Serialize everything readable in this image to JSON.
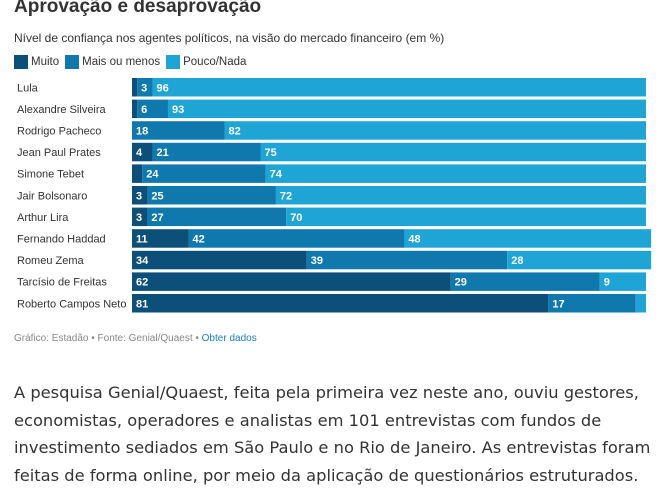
{
  "chart_data": {
    "type": "bar",
    "orientation": "horizontal",
    "stacked": true,
    "title": "Aprovação e desaprovação",
    "subtitle": "Nível de confiança nos agentes políticos, na visão do mercado financeiro (em %)",
    "categories": [
      "Lula",
      "Alexandre Silveira",
      "Rodrigo Pacheco",
      "Jean Paul Prates",
      "Simone Tebet",
      "Jair Bolsonaro",
      "Arthur Lira",
      "Fernando Haddad",
      "Romeu Zema",
      "Tarcísio de Freitas",
      "Roberto Campos Neto"
    ],
    "series": [
      {
        "name": "Muito",
        "color": "#0c4f78",
        "values": [
          1,
          1,
          0,
          4,
          2,
          3,
          3,
          11,
          34,
          62,
          81
        ]
      },
      {
        "name": "Mais ou menos",
        "color": "#0f79ad",
        "values": [
          3,
          6,
          18,
          21,
          24,
          25,
          27,
          42,
          39,
          29,
          17
        ]
      },
      {
        "name": "Pouco/Nada",
        "color": "#1fa4d6",
        "values": [
          96,
          93,
          82,
          75,
          74,
          72,
          70,
          48,
          28,
          9,
          2
        ]
      }
    ],
    "labels": [
      [
        null,
        "3",
        "96"
      ],
      [
        null,
        "6",
        "93"
      ],
      [
        null,
        "18",
        "82"
      ],
      [
        "4",
        "21",
        "75"
      ],
      [
        null,
        "24",
        "74"
      ],
      [
        "3",
        "25",
        "72"
      ],
      [
        "3",
        "27",
        "70"
      ],
      [
        "11",
        "42",
        "48"
      ],
      [
        "34",
        "39",
        "28"
      ],
      [
        "62",
        "29",
        "9"
      ],
      [
        "81",
        "17",
        null
      ]
    ],
    "xlim": [
      0,
      100
    ]
  },
  "legend": {
    "items": [
      {
        "label": "Muito",
        "color": "#0c4f78"
      },
      {
        "label": "Mais ou menos",
        "color": "#0f79ad"
      },
      {
        "label": "Pouco/Nada",
        "color": "#1fa4d6"
      }
    ]
  },
  "footer": {
    "source": "Gráfico: Estadão • Fonte: Genial/Quaest • ",
    "link": "Obter dados"
  },
  "article": {
    "paragraph": "A pesquisa Genial/Quaest, feita pela primeira vez neste ano, ouviu gestores, economistas, operadores e analistas em 101 entrevistas com fundos de investimento sediados em São Paulo e no Rio de Janeiro. As entrevistas foram feitas de forma online, por meio da aplicação de questionários estruturados."
  }
}
